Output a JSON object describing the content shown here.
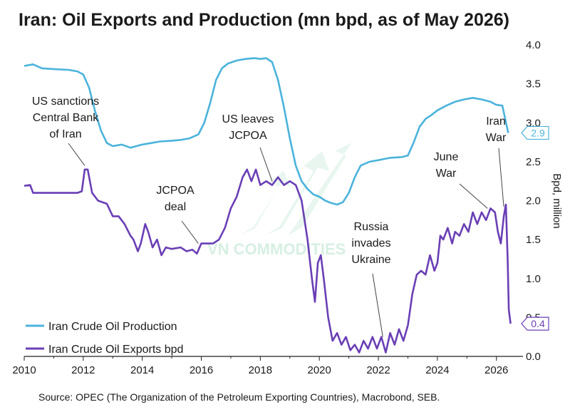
{
  "title": "Iran: Oil Exports and Production (mn bpd, as of May 2026)",
  "source": "Source: OPEC (The Organization of the Petroleum Exporting Countries), Macrobond, SEB.",
  "watermark": "VN COMMODITIES",
  "colors": {
    "production": "#4bb3dc",
    "exports": "#6a3fb5",
    "text": "#1a1a1a",
    "watermark": "#d7efe3"
  },
  "chart_data": {
    "type": "line",
    "title": "Iran: Oil Exports and Production (mn bpd, as of May 2026)",
    "xlabel": "",
    "ylabel": "Bpd, million",
    "xlim": [
      2010,
      2026.9
    ],
    "ylim": [
      0.0,
      4.0
    ],
    "x_ticks": [
      "2010",
      "2012",
      "2014",
      "2016",
      "2018",
      "2020",
      "2022",
      "2024",
      "2026"
    ],
    "y_ticks": [
      "0.0",
      "0.5",
      "1.0",
      "1.5",
      "2.0",
      "2.5",
      "3.0",
      "3.5",
      "4.0"
    ],
    "grid": false,
    "legend": "bottom-left",
    "series": [
      {
        "name": "Iran Crude Oil Production",
        "color": "#4bb3dc",
        "end_label": "2.9",
        "points": [
          [
            2010.0,
            3.73
          ],
          [
            2010.3,
            3.75
          ],
          [
            2010.6,
            3.7
          ],
          [
            2011.0,
            3.69
          ],
          [
            2011.5,
            3.68
          ],
          [
            2011.8,
            3.66
          ],
          [
            2012.0,
            3.62
          ],
          [
            2012.2,
            3.45
          ],
          [
            2012.4,
            3.15
          ],
          [
            2012.6,
            2.9
          ],
          [
            2012.8,
            2.74
          ],
          [
            2013.0,
            2.7
          ],
          [
            2013.3,
            2.72
          ],
          [
            2013.6,
            2.68
          ],
          [
            2014.0,
            2.72
          ],
          [
            2014.3,
            2.74
          ],
          [
            2014.6,
            2.76
          ],
          [
            2015.0,
            2.77
          ],
          [
            2015.3,
            2.78
          ],
          [
            2015.6,
            2.8
          ],
          [
            2015.9,
            2.85
          ],
          [
            2016.1,
            3.0
          ],
          [
            2016.3,
            3.25
          ],
          [
            2016.5,
            3.55
          ],
          [
            2016.7,
            3.7
          ],
          [
            2016.9,
            3.76
          ],
          [
            2017.2,
            3.8
          ],
          [
            2017.5,
            3.82
          ],
          [
            2017.8,
            3.83
          ],
          [
            2018.0,
            3.82
          ],
          [
            2018.2,
            3.83
          ],
          [
            2018.4,
            3.78
          ],
          [
            2018.6,
            3.55
          ],
          [
            2018.8,
            3.2
          ],
          [
            2019.0,
            2.8
          ],
          [
            2019.2,
            2.45
          ],
          [
            2019.4,
            2.25
          ],
          [
            2019.6,
            2.15
          ],
          [
            2019.8,
            2.08
          ],
          [
            2020.0,
            2.05
          ],
          [
            2020.2,
            2.0
          ],
          [
            2020.4,
            1.97
          ],
          [
            2020.6,
            1.95
          ],
          [
            2020.8,
            1.98
          ],
          [
            2021.0,
            2.1
          ],
          [
            2021.2,
            2.3
          ],
          [
            2021.4,
            2.45
          ],
          [
            2021.7,
            2.5
          ],
          [
            2022.0,
            2.52
          ],
          [
            2022.4,
            2.55
          ],
          [
            2022.8,
            2.56
          ],
          [
            2023.0,
            2.58
          ],
          [
            2023.2,
            2.75
          ],
          [
            2023.4,
            2.95
          ],
          [
            2023.6,
            3.05
          ],
          [
            2023.8,
            3.1
          ],
          [
            2024.0,
            3.16
          ],
          [
            2024.3,
            3.22
          ],
          [
            2024.6,
            3.27
          ],
          [
            2024.9,
            3.3
          ],
          [
            2025.2,
            3.32
          ],
          [
            2025.5,
            3.3
          ],
          [
            2025.8,
            3.27
          ],
          [
            2026.0,
            3.23
          ],
          [
            2026.2,
            3.22
          ],
          [
            2026.3,
            3.05
          ],
          [
            2026.4,
            2.87
          ]
        ]
      },
      {
        "name": "Iran Crude Oil Exports bpd",
        "color": "#6a3fb5",
        "end_label": "0.4",
        "points": [
          [
            2010.0,
            2.19
          ],
          [
            2010.2,
            2.2
          ],
          [
            2010.3,
            2.1
          ],
          [
            2010.6,
            2.1
          ],
          [
            2011.0,
            2.1
          ],
          [
            2011.5,
            2.1
          ],
          [
            2011.8,
            2.1
          ],
          [
            2011.95,
            2.12
          ],
          [
            2012.05,
            2.4
          ],
          [
            2012.15,
            2.4
          ],
          [
            2012.3,
            2.1
          ],
          [
            2012.5,
            2.0
          ],
          [
            2012.8,
            1.96
          ],
          [
            2013.0,
            1.8
          ],
          [
            2013.2,
            1.8
          ],
          [
            2013.4,
            1.7
          ],
          [
            2013.6,
            1.55
          ],
          [
            2013.7,
            1.5
          ],
          [
            2013.85,
            1.35
          ],
          [
            2013.95,
            1.45
          ],
          [
            2014.1,
            1.7
          ],
          [
            2014.2,
            1.6
          ],
          [
            2014.35,
            1.4
          ],
          [
            2014.5,
            1.5
          ],
          [
            2014.65,
            1.3
          ],
          [
            2014.8,
            1.4
          ],
          [
            2015.0,
            1.38
          ],
          [
            2015.3,
            1.4
          ],
          [
            2015.5,
            1.35
          ],
          [
            2015.7,
            1.37
          ],
          [
            2015.85,
            1.32
          ],
          [
            2016.0,
            1.45
          ],
          [
            2016.4,
            1.45
          ],
          [
            2016.6,
            1.5
          ],
          [
            2016.8,
            1.65
          ],
          [
            2017.0,
            1.9
          ],
          [
            2017.2,
            2.05
          ],
          [
            2017.4,
            2.3
          ],
          [
            2017.55,
            2.4
          ],
          [
            2017.7,
            2.25
          ],
          [
            2017.85,
            2.4
          ],
          [
            2018.0,
            2.2
          ],
          [
            2018.2,
            2.25
          ],
          [
            2018.4,
            2.2
          ],
          [
            2018.6,
            2.3
          ],
          [
            2018.8,
            2.2
          ],
          [
            2019.0,
            2.25
          ],
          [
            2019.2,
            2.2
          ],
          [
            2019.4,
            2.0
          ],
          [
            2019.6,
            1.5
          ],
          [
            2019.75,
            1.0
          ],
          [
            2019.85,
            0.7
          ],
          [
            2019.95,
            1.2
          ],
          [
            2020.05,
            1.3
          ],
          [
            2020.15,
            1.0
          ],
          [
            2020.3,
            0.5
          ],
          [
            2020.45,
            0.2
          ],
          [
            2020.6,
            0.3
          ],
          [
            2020.75,
            0.15
          ],
          [
            2020.9,
            0.25
          ],
          [
            2021.05,
            0.08
          ],
          [
            2021.2,
            0.15
          ],
          [
            2021.35,
            0.05
          ],
          [
            2021.5,
            0.2
          ],
          [
            2021.65,
            0.1
          ],
          [
            2021.8,
            0.25
          ],
          [
            2021.95,
            0.1
          ],
          [
            2022.1,
            0.25
          ],
          [
            2022.25,
            0.05
          ],
          [
            2022.4,
            0.3
          ],
          [
            2022.55,
            0.15
          ],
          [
            2022.7,
            0.35
          ],
          [
            2022.85,
            0.2
          ],
          [
            2023.0,
            0.4
          ],
          [
            2023.15,
            0.8
          ],
          [
            2023.3,
            1.05
          ],
          [
            2023.45,
            1.1
          ],
          [
            2023.6,
            1.05
          ],
          [
            2023.75,
            1.3
          ],
          [
            2023.9,
            1.1
          ],
          [
            2024.0,
            1.2
          ],
          [
            2024.1,
            1.55
          ],
          [
            2024.2,
            1.5
          ],
          [
            2024.35,
            1.65
          ],
          [
            2024.5,
            1.45
          ],
          [
            2024.6,
            1.6
          ],
          [
            2024.75,
            1.55
          ],
          [
            2024.9,
            1.7
          ],
          [
            2025.05,
            1.6
          ],
          [
            2025.2,
            1.85
          ],
          [
            2025.35,
            1.7
          ],
          [
            2025.5,
            1.85
          ],
          [
            2025.65,
            1.75
          ],
          [
            2025.8,
            1.9
          ],
          [
            2025.95,
            1.85
          ],
          [
            2026.05,
            1.6
          ],
          [
            2026.15,
            1.45
          ],
          [
            2026.25,
            1.8
          ],
          [
            2026.32,
            1.95
          ],
          [
            2026.38,
            1.25
          ],
          [
            2026.42,
            0.6
          ],
          [
            2026.48,
            0.42
          ]
        ]
      }
    ],
    "annotations": [
      {
        "lines": [
          "US sanctions",
          "Central Bank",
          "of Iran"
        ],
        "x": 2012.05,
        "y": 2.45
      },
      {
        "lines": [
          "JCPOA",
          "deal"
        ],
        "x": 2015.9,
        "y": 1.45
      },
      {
        "lines": [
          "US leaves",
          "JCPOA"
        ],
        "x": 2018.4,
        "y": 2.25
      },
      {
        "lines": [
          "Russia",
          "invades",
          "Ukraine"
        ],
        "x": 2022.15,
        "y": 0.25
      },
      {
        "lines": [
          "June",
          "War"
        ],
        "x": 2025.7,
        "y": 1.9
      },
      {
        "lines": [
          "Iran",
          "War"
        ],
        "x": 2026.25,
        "y": 1.92
      }
    ]
  }
}
